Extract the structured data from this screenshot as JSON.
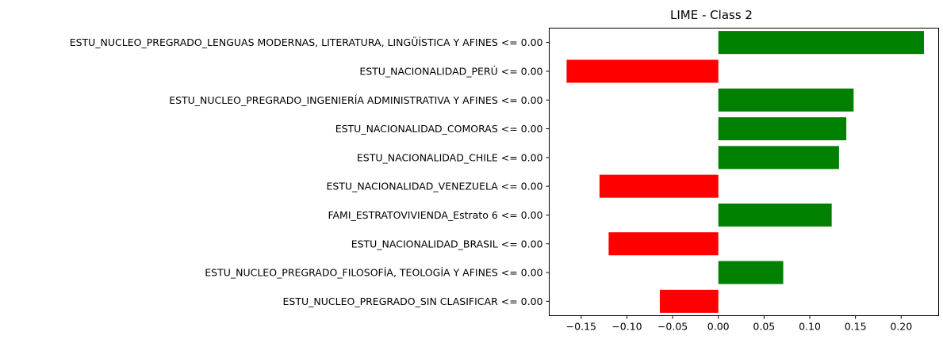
{
  "chart_data": {
    "type": "bar",
    "orientation": "horizontal",
    "title": "LIME - Class 2",
    "xlabel": "",
    "ylabel": "",
    "xlim": [
      -0.185,
      0.241
    ],
    "xticks": [
      -0.15,
      -0.1,
      -0.05,
      0.0,
      0.05,
      0.1,
      0.15,
      0.2
    ],
    "xtick_labels": [
      "−0.15",
      "−0.10",
      "−0.05",
      "0.00",
      "0.05",
      "0.10",
      "0.15",
      "0.20"
    ],
    "grid": false,
    "categories": [
      "ESTU_NUCLEO_PREGRADO_LENGUAS MODERNAS, LITERATURA, LINGÜÍSTICA Y AFINES <= 0.00",
      "ESTU_NACIONALIDAD_PERÚ <= 0.00",
      "ESTU_NUCLEO_PREGRADO_INGENIERÍA ADMINISTRATIVA Y AFINES <= 0.00",
      "ESTU_NACIONALIDAD_COMORAS <= 0.00",
      "ESTU_NACIONALIDAD_CHILE <= 0.00",
      "ESTU_NACIONALIDAD_VENEZUELA <= 0.00",
      "FAMI_ESTRATOVIVIENDA_Estrato 6 <= 0.00",
      "ESTU_NACIONALIDAD_BRASIL <= 0.00",
      "ESTU_NUCLEO_PREGRADO_FILOSOFÍA, TEOLOGÍA Y AFINES <= 0.00",
      "ESTU_NUCLEO_PREGRADO_SIN CLASIFICAR <= 0.00"
    ],
    "values": [
      0.225,
      -0.166,
      0.148,
      0.14,
      0.132,
      -0.13,
      0.124,
      -0.12,
      0.071,
      -0.064
    ],
    "colors": {
      "positive": "#008000",
      "negative": "#ff0000"
    }
  }
}
